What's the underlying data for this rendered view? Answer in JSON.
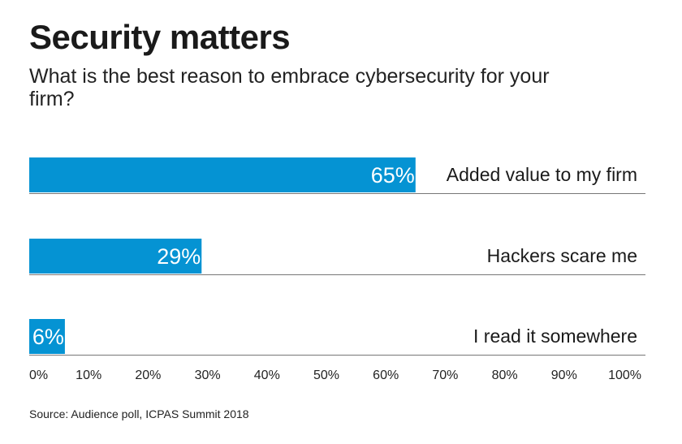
{
  "header": {
    "title": "Security matters",
    "subtitle": "What is the best reason to embrace cybersecurity for your firm?"
  },
  "chart_data": {
    "type": "bar",
    "orientation": "horizontal",
    "categories": [
      "Added value to my firm",
      "Hackers scare me",
      "I read it somewhere"
    ],
    "values": [
      65,
      29,
      6
    ],
    "value_labels": [
      "65%",
      "29%",
      "6%"
    ],
    "xlim": [
      0,
      100
    ],
    "x_ticks": [
      0,
      10,
      20,
      30,
      40,
      50,
      60,
      70,
      80,
      90,
      100
    ],
    "x_tick_labels": [
      "0%",
      "10%",
      "20%",
      "30%",
      "40%",
      "50%",
      "60%",
      "70%",
      "80%",
      "90%",
      "100%"
    ],
    "bar_color": "#0593d3",
    "grid": false
  },
  "footer": {
    "source": "Source: Audience poll, ICPAS Summit 2018"
  }
}
